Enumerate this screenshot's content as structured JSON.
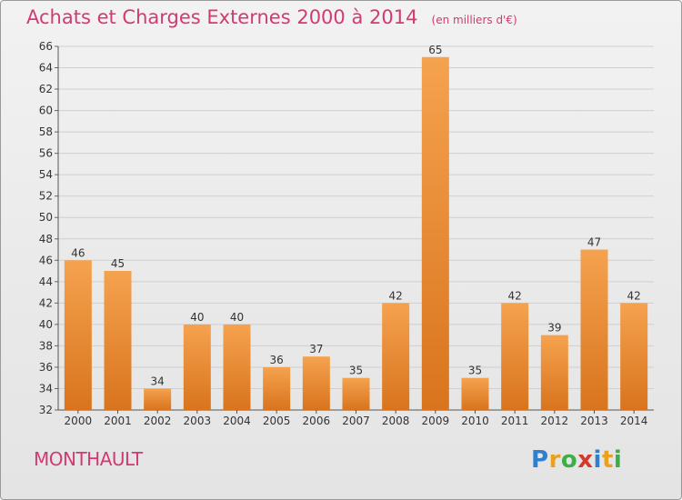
{
  "title": "Achats et Charges Externes 2000 à 2014",
  "title_unit": "(en milliers d'€)",
  "commune": "MONTHAULT",
  "logo": {
    "letters": [
      "P",
      "r",
      "o",
      "x",
      "i",
      "t",
      "i"
    ],
    "colors": [
      "#2f7fcf",
      "#e8a21e",
      "#3fae49",
      "#d33a2c",
      "#2f7fcf",
      "#e8a21e",
      "#3fae49"
    ]
  },
  "colors": {
    "bar_light": "#f5a24f",
    "bar_dark": "#d9741d",
    "accent": "#d23a73",
    "grid": "#cfcfcf"
  },
  "chart_data": {
    "type": "bar",
    "title": "Achats et Charges Externes 2000 à 2014",
    "xlabel": "",
    "ylabel": "",
    "categories": [
      "2000",
      "2001",
      "2002",
      "2003",
      "2004",
      "2005",
      "2006",
      "2007",
      "2008",
      "2009",
      "2010",
      "2011",
      "2012",
      "2013",
      "2014"
    ],
    "values": [
      46,
      45,
      34,
      40,
      40,
      36,
      37,
      35,
      42,
      65,
      35,
      42,
      39,
      47,
      42
    ],
    "ylim": [
      32,
      66
    ],
    "yticks": [
      32,
      34,
      36,
      38,
      40,
      42,
      44,
      46,
      48,
      50,
      52,
      54,
      56,
      58,
      60,
      62,
      64,
      66
    ],
    "grid": true
  }
}
